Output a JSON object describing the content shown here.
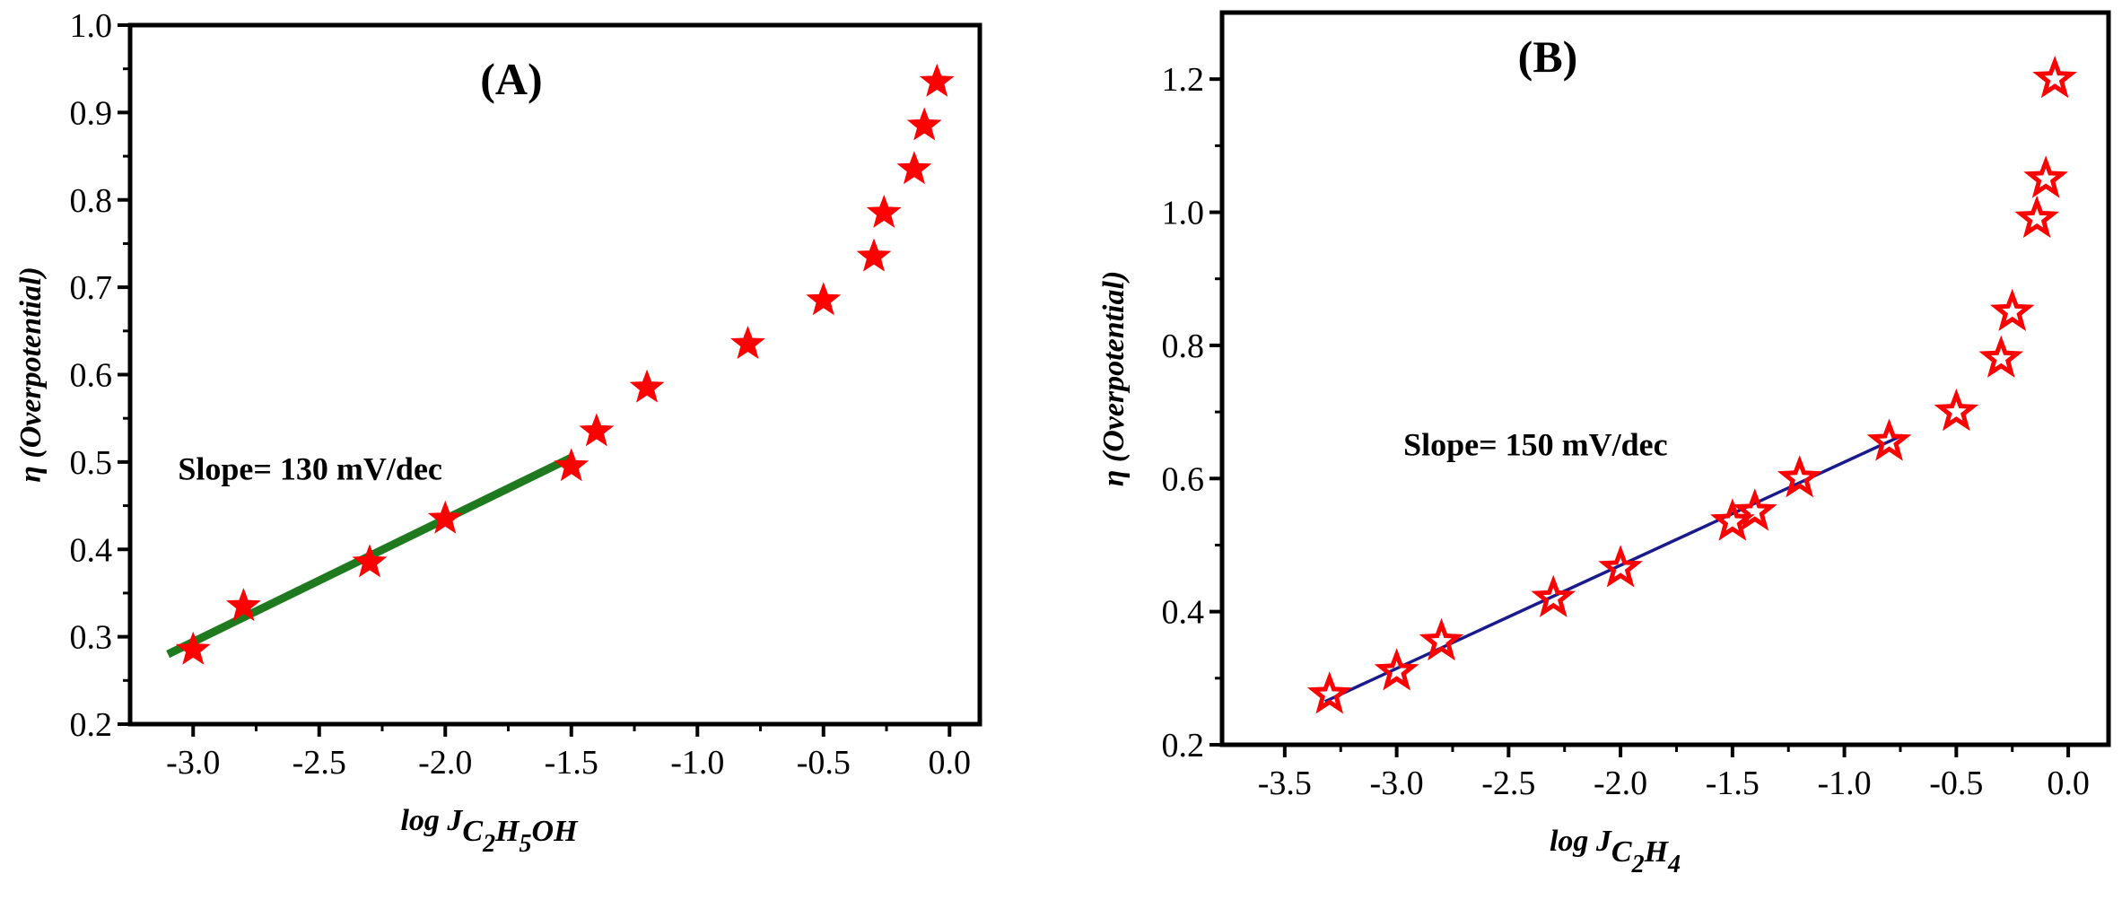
{
  "chart_data": [
    {
      "type": "scatter",
      "panel": "A",
      "title": "(A)",
      "xlabel": {
        "prefix": "log J",
        "subscript": "C2H5OH",
        "parts": [
          [
            "C",
            ""
          ],
          [
            "2",
            "sub"
          ],
          [
            "H",
            ""
          ],
          [
            "5",
            "sub"
          ],
          [
            "OH",
            ""
          ]
        ]
      },
      "ylabel": "η (Overpotential)",
      "xlim": [
        -3.25,
        0.12
      ],
      "ylim": [
        0.2,
        1.0
      ],
      "xticks": [
        -3.0,
        -2.5,
        -2.0,
        -1.5,
        -1.0,
        -0.5,
        0.0
      ],
      "yticks": [
        0.2,
        0.3,
        0.4,
        0.5,
        0.6,
        0.7,
        0.8,
        0.9,
        1.0
      ],
      "xtick_labels": [
        "-3.0",
        "-2.5",
        "-2.0",
        "-1.5",
        "-1.0",
        "-0.5",
        "0.0"
      ],
      "ytick_labels": [
        "0.2",
        "0.3",
        "0.4",
        "0.5",
        "0.6",
        "0.7",
        "0.8",
        "0.9",
        "1.0"
      ],
      "marker": "filled-star",
      "marker_color": "#ff0000",
      "points": [
        {
          "x": -3.0,
          "y": 0.285
        },
        {
          "x": -2.8,
          "y": 0.335
        },
        {
          "x": -2.3,
          "y": 0.385
        },
        {
          "x": -2.0,
          "y": 0.435
        },
        {
          "x": -1.5,
          "y": 0.495
        },
        {
          "x": -1.4,
          "y": 0.535
        },
        {
          "x": -1.2,
          "y": 0.585
        },
        {
          "x": -0.8,
          "y": 0.635
        },
        {
          "x": -0.5,
          "y": 0.685
        },
        {
          "x": -0.3,
          "y": 0.735
        },
        {
          "x": -0.26,
          "y": 0.785
        },
        {
          "x": -0.14,
          "y": 0.835
        },
        {
          "x": -0.1,
          "y": 0.885
        },
        {
          "x": -0.05,
          "y": 0.935
        }
      ],
      "fit_line": {
        "x1": -3.1,
        "y1": 0.28,
        "x2": -1.5,
        "y2": 0.505,
        "color": "#1f7a1f"
      },
      "annotation": {
        "text": "Slope= 130 mV/dec",
        "x": -3.06,
        "y": 0.48
      }
    },
    {
      "type": "scatter",
      "panel": "B",
      "title": "(B)",
      "xlabel": {
        "prefix": "log J",
        "subscript": "C2H4",
        "parts": [
          [
            "C",
            ""
          ],
          [
            "2",
            "sub"
          ],
          [
            "H",
            ""
          ],
          [
            "4",
            "sub"
          ]
        ]
      },
      "ylabel": "η (Overpotential)",
      "xlim": [
        -3.78,
        0.18
      ],
      "ylim": [
        0.2,
        1.3
      ],
      "xticks": [
        -3.5,
        -3.0,
        -2.5,
        -2.0,
        -1.5,
        -1.0,
        -0.5,
        0.0
      ],
      "yticks": [
        0.2,
        0.4,
        0.6,
        0.8,
        1.0,
        1.2
      ],
      "xtick_labels": [
        "-3.5",
        "-3.0",
        "-2.5",
        "-2.0",
        "-1.5",
        "-1.0",
        "-0.5",
        "0.0"
      ],
      "ytick_labels": [
        "0.2",
        "0.4",
        "0.6",
        "0.8",
        "1.0",
        "1.2"
      ],
      "marker": "hollow-star",
      "marker_color": "#ff0000",
      "points": [
        {
          "x": -3.3,
          "y": 0.275
        },
        {
          "x": -3.0,
          "y": 0.31
        },
        {
          "x": -2.8,
          "y": 0.355
        },
        {
          "x": -2.3,
          "y": 0.42
        },
        {
          "x": -2.0,
          "y": 0.465
        },
        {
          "x": -1.5,
          "y": 0.535
        },
        {
          "x": -1.4,
          "y": 0.55
        },
        {
          "x": -1.2,
          "y": 0.6
        },
        {
          "x": -0.8,
          "y": 0.655
        },
        {
          "x": -0.5,
          "y": 0.7
        },
        {
          "x": -0.3,
          "y": 0.78
        },
        {
          "x": -0.25,
          "y": 0.85
        },
        {
          "x": -0.14,
          "y": 0.99
        },
        {
          "x": -0.1,
          "y": 1.05
        },
        {
          "x": -0.06,
          "y": 1.2
        }
      ],
      "fit_line": {
        "x1": -3.32,
        "y1": 0.265,
        "x2": -0.74,
        "y2": 0.665,
        "color": "#1a1a8c"
      },
      "annotation": {
        "text": "Slope= 150 mV/dec",
        "x": -2.97,
        "y": 0.635
      }
    }
  ]
}
